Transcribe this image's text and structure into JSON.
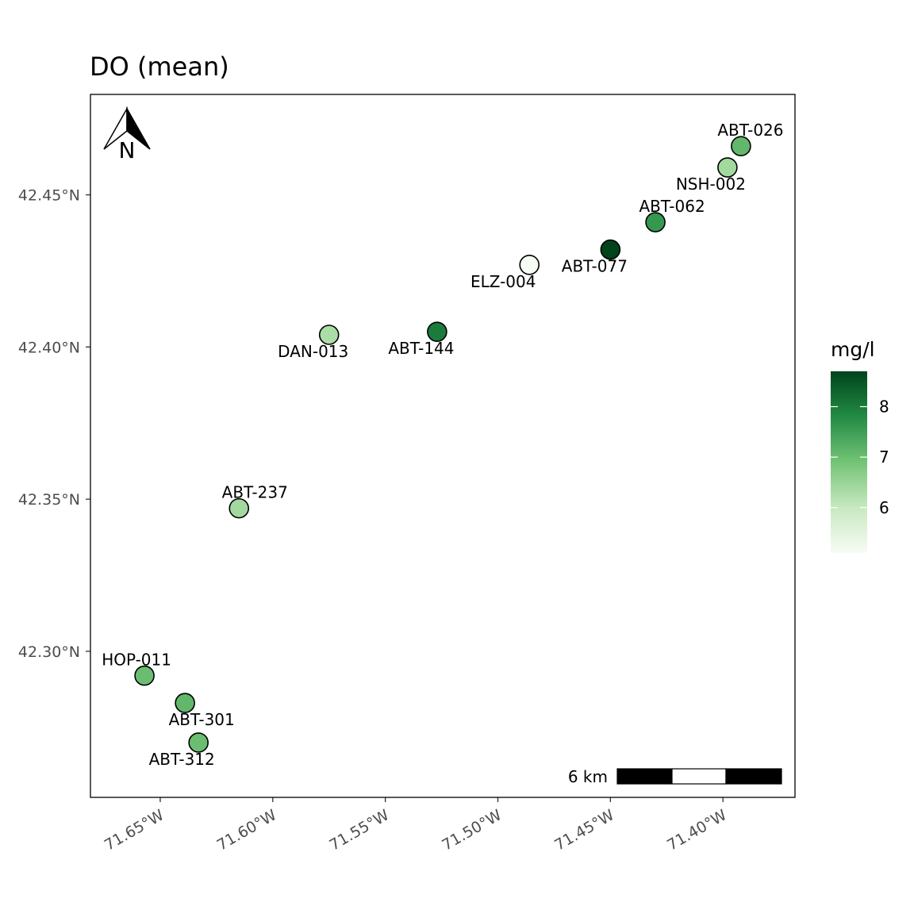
{
  "map": {
    "title": "DO (mean)",
    "north_arrow": {
      "icon": "north-arrow-icon",
      "letter": "N"
    },
    "scale_bar": {
      "label": "6 km"
    },
    "legend": {
      "title": "mg/l",
      "min": 5.1,
      "max": 8.7,
      "ticks": [
        {
          "value": 6,
          "label": "6"
        },
        {
          "value": 7,
          "label": "7"
        },
        {
          "value": 8,
          "label": "8"
        }
      ],
      "colors": [
        "#f7fcf5",
        "#c7e9c0",
        "#74c476",
        "#238b45",
        "#00441b"
      ]
    },
    "x_axis": {
      "range": [
        -71.681,
        -71.368
      ],
      "ticks": [
        {
          "value": -71.65,
          "label": "71.65°W"
        },
        {
          "value": -71.6,
          "label": "71.60°W"
        },
        {
          "value": -71.55,
          "label": "71.55°W"
        },
        {
          "value": -71.5,
          "label": "71.50°W"
        },
        {
          "value": -71.45,
          "label": "71.45°W"
        },
        {
          "value": -71.4,
          "label": "71.40°W"
        }
      ]
    },
    "y_axis": {
      "range": [
        42.252,
        42.483
      ],
      "ticks": [
        {
          "value": 42.3,
          "label": "42.30°N"
        },
        {
          "value": 42.35,
          "label": "42.35°N"
        },
        {
          "value": 42.4,
          "label": "42.40°N"
        },
        {
          "value": 42.45,
          "label": "42.45°N"
        }
      ]
    },
    "sites": [
      {
        "id": "ABT-026",
        "lon": -71.392,
        "lat": 42.466,
        "value": 7.1,
        "label_pos": "above"
      },
      {
        "id": "NSH-002",
        "lon": -71.398,
        "lat": 42.459,
        "value": 6.4,
        "label_pos": "below-left"
      },
      {
        "id": "ABT-062",
        "lon": -71.43,
        "lat": 42.441,
        "value": 7.6,
        "label_pos": "above"
      },
      {
        "id": "ABT-077",
        "lon": -71.45,
        "lat": 42.432,
        "value": 8.7,
        "label_pos": "below-right"
      },
      {
        "id": "ELZ-004",
        "lon": -71.486,
        "lat": 42.427,
        "value": 5.1,
        "label_pos": "below-left"
      },
      {
        "id": "ABT-144",
        "lon": -71.527,
        "lat": 42.405,
        "value": 8.0,
        "label_pos": "below"
      },
      {
        "id": "DAN-013",
        "lon": -71.575,
        "lat": 42.404,
        "value": 6.3,
        "label_pos": "below"
      },
      {
        "id": "ABT-237",
        "lon": -71.615,
        "lat": 42.347,
        "value": 6.4,
        "label_pos": "above"
      },
      {
        "id": "HOP-011",
        "lon": -71.657,
        "lat": 42.292,
        "value": 7.0,
        "label_pos": "above"
      },
      {
        "id": "ABT-301",
        "lon": -71.639,
        "lat": 42.283,
        "value": 7.1,
        "label_pos": "below"
      },
      {
        "id": "ABT-312",
        "lon": -71.633,
        "lat": 42.27,
        "value": 7.0,
        "label_pos": "below"
      }
    ]
  }
}
